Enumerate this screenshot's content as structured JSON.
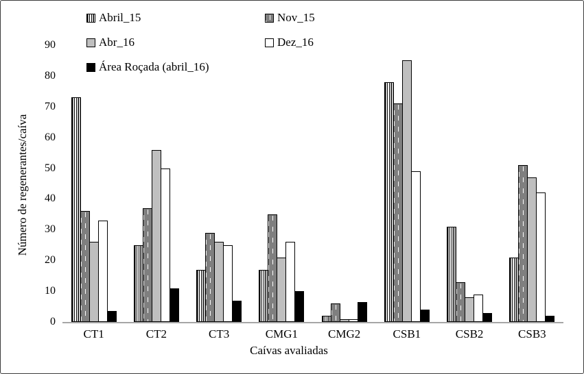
{
  "colors": {
    "bar_gray": "#bfbfbf",
    "bar_black": "#000000",
    "axis_line": "#a6a6a6",
    "pattern_line": "#7f7f7f",
    "text": "#000000"
  },
  "chart_data": {
    "type": "bar",
    "title": "",
    "xlabel": "Caívas avaliadas",
    "ylabel": "Número de regenerantes/caíva",
    "ylim": [
      0,
      90
    ],
    "ytick_step": 10,
    "grid": false,
    "legend_position": "top-left, two columns",
    "categories": [
      "CT1",
      "CT2",
      "CT3",
      "CMG1",
      "CMG2",
      "CSB1",
      "CSB2",
      "CSB3"
    ],
    "series": [
      {
        "name": "Abril_15",
        "pattern": "vstripes",
        "values": [
          73,
          25,
          17,
          17,
          2,
          78,
          31,
          21
        ]
      },
      {
        "name": "Nov_15",
        "pattern": "brick",
        "values": [
          36,
          37,
          29,
          35,
          6,
          71,
          13,
          51
        ]
      },
      {
        "name": "Abr_16",
        "pattern": "gray",
        "values": [
          26,
          56,
          26,
          21,
          1,
          85,
          8,
          47
        ]
      },
      {
        "name": "Dez_16",
        "pattern": "white",
        "values": [
          33,
          50,
          25,
          26,
          1,
          49,
          9,
          42
        ]
      },
      {
        "name": "Área Roçada (abril_16)",
        "pattern": "black",
        "values": [
          3.5,
          11,
          7,
          10,
          6.5,
          4,
          3,
          2
        ]
      }
    ]
  }
}
